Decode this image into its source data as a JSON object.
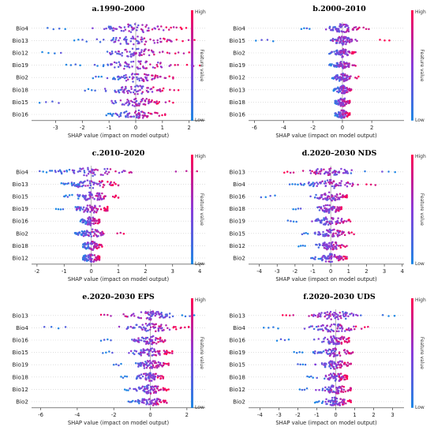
{
  "chart_data": [
    {
      "type": "scatter",
      "subtype": "shap-beeswarm",
      "title": "a.1990–2000",
      "xlabel": "SHAP value (impact on model output)",
      "colorbar": {
        "label": "Feature value",
        "high": "High",
        "low": "Low",
        "low_color": "#1e88e5",
        "high_color": "#ff0052"
      },
      "xlim": [
        -3.9,
        2.6
      ],
      "xticks": [
        -3,
        -2,
        -1,
        0,
        1,
        2
      ],
      "features": [
        {
          "name": "Bio4",
          "min": -3.3,
          "max": 2.1,
          "spread": 0.75
        },
        {
          "name": "Bio13",
          "min": -2.3,
          "max": 2.2,
          "spread": 0.7
        },
        {
          "name": "Bio12",
          "min": -3.5,
          "max": 2.0,
          "spread": 0.6
        },
        {
          "name": "Bio19",
          "min": -2.6,
          "max": 2.4,
          "spread": 0.75
        },
        {
          "name": "Bio2",
          "min": -1.6,
          "max": 1.4,
          "spread": 0.55
        },
        {
          "name": "Bio18",
          "min": -1.9,
          "max": 1.6,
          "spread": 0.55
        },
        {
          "name": "Bio15",
          "min": -3.6,
          "max": 1.4,
          "spread": 0.5
        },
        {
          "name": "Bio16",
          "min": -1.1,
          "max": 1.1,
          "spread": 0.45
        }
      ]
    },
    {
      "type": "scatter",
      "subtype": "shap-beeswarm",
      "title": "b.2000–2010",
      "xlabel": "SHAP value (impact on model output)",
      "colorbar": {
        "label": "Feature value",
        "high": "High",
        "low": "Low"
      },
      "xlim": [
        -6.4,
        4.2
      ],
      "xticks": [
        -6,
        -4,
        -2,
        0,
        2
      ],
      "features": [
        {
          "name": "Bio4",
          "min": -2.8,
          "max": 1.8,
          "spread": 0.5
        },
        {
          "name": "Bio15",
          "min": -5.9,
          "max": 3.2,
          "spread": 0.4
        },
        {
          "name": "Bio2",
          "min": -0.9,
          "max": 0.9,
          "spread": 0.3
        },
        {
          "name": "Bio19",
          "min": -0.9,
          "max": 0.9,
          "spread": 0.3
        },
        {
          "name": "Bio12",
          "min": -0.7,
          "max": 1.1,
          "spread": 0.3
        },
        {
          "name": "Bio13",
          "min": -0.6,
          "max": 0.6,
          "spread": 0.25
        },
        {
          "name": "Bio18",
          "min": -0.5,
          "max": 0.5,
          "spread": 0.25
        },
        {
          "name": "Bio16",
          "min": -0.5,
          "max": 0.5,
          "spread": 0.25
        }
      ]
    },
    {
      "type": "scatter",
      "subtype": "shap-beeswarm",
      "title": "c.2010–2020",
      "xlabel": "SHAP value (impact on model output)",
      "colorbar": {
        "label": "Feature value",
        "high": "High",
        "low": "Low"
      },
      "xlim": [
        -2.2,
        4.2
      ],
      "xticks": [
        -2,
        -1,
        0,
        1,
        2,
        3,
        4
      ],
      "features": [
        {
          "name": "Bio4",
          "min": -1.9,
          "max": 3.9,
          "spread": 0.7
        },
        {
          "name": "Bio13",
          "min": -1.1,
          "max": 1.0,
          "spread": 0.5
        },
        {
          "name": "Bio15",
          "min": -1.0,
          "max": 1.0,
          "spread": 0.45
        },
        {
          "name": "Bio19",
          "min": -1.3,
          "max": 0.6,
          "spread": 0.4
        },
        {
          "name": "Bio16",
          "min": -0.4,
          "max": 0.3,
          "spread": 0.2
        },
        {
          "name": "Bio2",
          "min": -0.6,
          "max": 1.2,
          "spread": 0.25
        },
        {
          "name": "Bio18",
          "min": -0.3,
          "max": 0.4,
          "spread": 0.2
        },
        {
          "name": "Bio12",
          "min": -0.3,
          "max": 0.3,
          "spread": 0.2
        }
      ]
    },
    {
      "type": "scatter",
      "subtype": "shap-beeswarm",
      "title": "d.2020–2030 NDS",
      "xlabel": "SHAP value (impact on model output)",
      "colorbar": {
        "label": "Feature value",
        "high": "High",
        "low": "Low"
      },
      "xlim": [
        -4.6,
        4.1
      ],
      "xticks": [
        -4,
        -3,
        -2,
        -1,
        0,
        1,
        2,
        3,
        4
      ],
      "features": [
        {
          "name": "Bio13",
          "min": -2.6,
          "max": 3.6,
          "spread": 0.7
        },
        {
          "name": "Bio4",
          "min": -2.3,
          "max": 2.5,
          "spread": 0.75
        },
        {
          "name": "Bio16",
          "min": -3.9,
          "max": 0.9,
          "spread": 0.5
        },
        {
          "name": "Bio18",
          "min": -2.1,
          "max": 0.6,
          "spread": 0.4
        },
        {
          "name": "Bio19",
          "min": -2.4,
          "max": 1.1,
          "spread": 0.5
        },
        {
          "name": "Bio15",
          "min": -1.6,
          "max": 1.3,
          "spread": 0.45
        },
        {
          "name": "Bio12",
          "min": -1.8,
          "max": 0.9,
          "spread": 0.4
        },
        {
          "name": "Bio2",
          "min": -1.1,
          "max": 0.9,
          "spread": 0.4
        }
      ]
    },
    {
      "type": "scatter",
      "subtype": "shap-beeswarm",
      "title": "e.2020–2030 EPS",
      "xlabel": "SHAP value (impact on model output)",
      "colorbar": {
        "label": "Feature value",
        "high": "High",
        "low": "Low"
      },
      "xlim": [
        -6.5,
        3.0
      ],
      "xticks": [
        -6,
        -4,
        -2,
        0,
        2
      ],
      "features": [
        {
          "name": "Bio13",
          "min": -2.7,
          "max": 2.4,
          "spread": 0.7
        },
        {
          "name": "Bio4",
          "min": -5.8,
          "max": 2.1,
          "spread": 0.75
        },
        {
          "name": "Bio16",
          "min": -2.7,
          "max": 0.8,
          "spread": 0.45
        },
        {
          "name": "Bio15",
          "min": -2.6,
          "max": 1.2,
          "spread": 0.55
        },
        {
          "name": "Bio19",
          "min": -2.0,
          "max": 1.0,
          "spread": 0.45
        },
        {
          "name": "Bio18",
          "min": -1.6,
          "max": 0.7,
          "spread": 0.45
        },
        {
          "name": "Bio12",
          "min": -1.4,
          "max": 1.0,
          "spread": 0.45
        },
        {
          "name": "Bio2",
          "min": -1.2,
          "max": 0.9,
          "spread": 0.4
        }
      ]
    },
    {
      "type": "scatter",
      "subtype": "shap-beeswarm",
      "title": "f.2020–2030 UDS",
      "xlabel": "SHAP value (impact on model output)",
      "colorbar": {
        "label": "Feature value",
        "high": "High",
        "low": "Low"
      },
      "xlim": [
        -4.6,
        3.6
      ],
      "xticks": [
        -4,
        -3,
        -2,
        -1,
        0,
        1,
        2,
        3
      ],
      "features": [
        {
          "name": "Bio13",
          "min": -2.8,
          "max": 3.1,
          "spread": 0.7
        },
        {
          "name": "Bio4",
          "min": -3.8,
          "max": 1.7,
          "spread": 0.75
        },
        {
          "name": "Bio16",
          "min": -3.1,
          "max": 0.7,
          "spread": 0.5
        },
        {
          "name": "Bio19",
          "min": -2.2,
          "max": 0.9,
          "spread": 0.5
        },
        {
          "name": "Bio15",
          "min": -2.0,
          "max": 0.8,
          "spread": 0.45
        },
        {
          "name": "Bio18",
          "min": -1.5,
          "max": 0.6,
          "spread": 0.4
        },
        {
          "name": "Bio12",
          "min": -1.9,
          "max": 0.8,
          "spread": 0.4
        },
        {
          "name": "Bio2",
          "min": -1.1,
          "max": 0.8,
          "spread": 0.4
        }
      ]
    }
  ]
}
